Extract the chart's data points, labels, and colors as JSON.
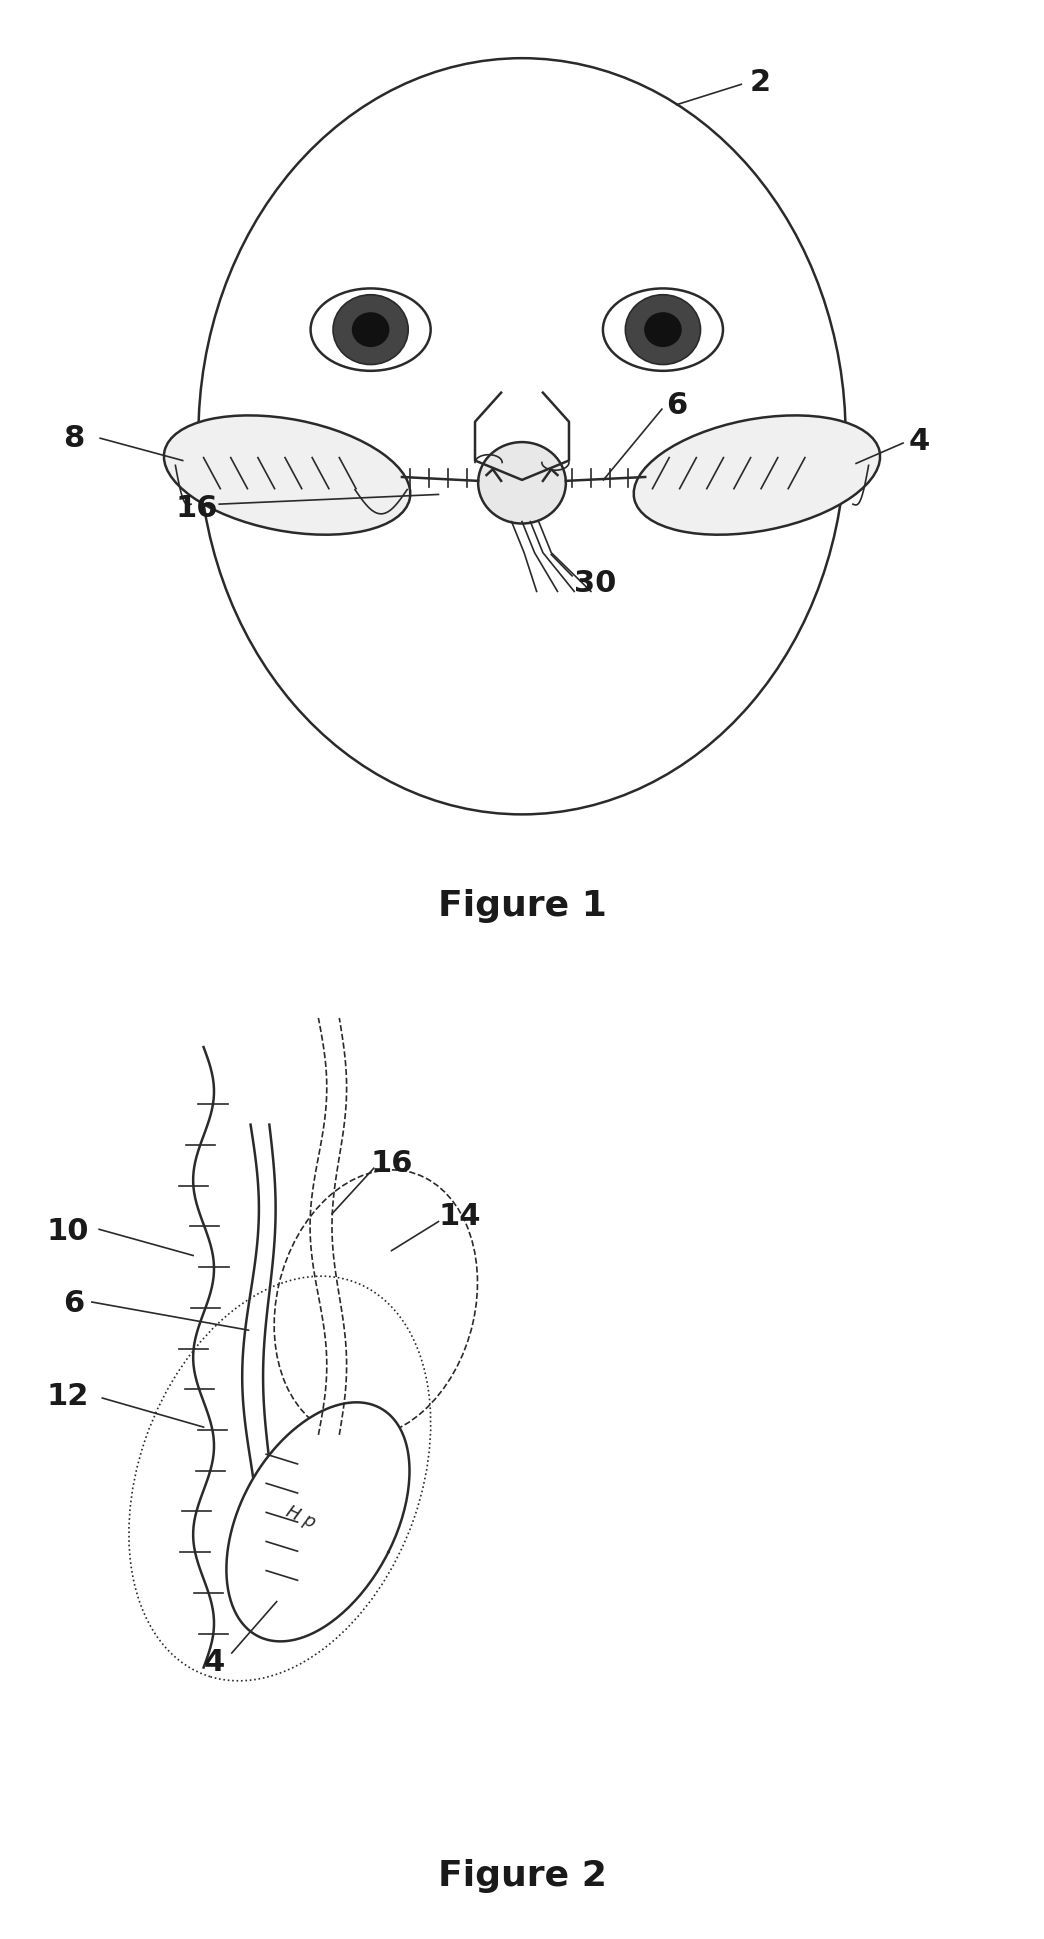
{
  "fig1_title": "Figure 1",
  "fig2_title": "Figure 2",
  "background": "#ffffff",
  "line_color": "#2a2a2a",
  "label_color": "#1a1a1a",
  "label_fontsize": 22,
  "title_fontsize": 26,
  "lw_main": 1.8,
  "lw_thin": 1.2
}
